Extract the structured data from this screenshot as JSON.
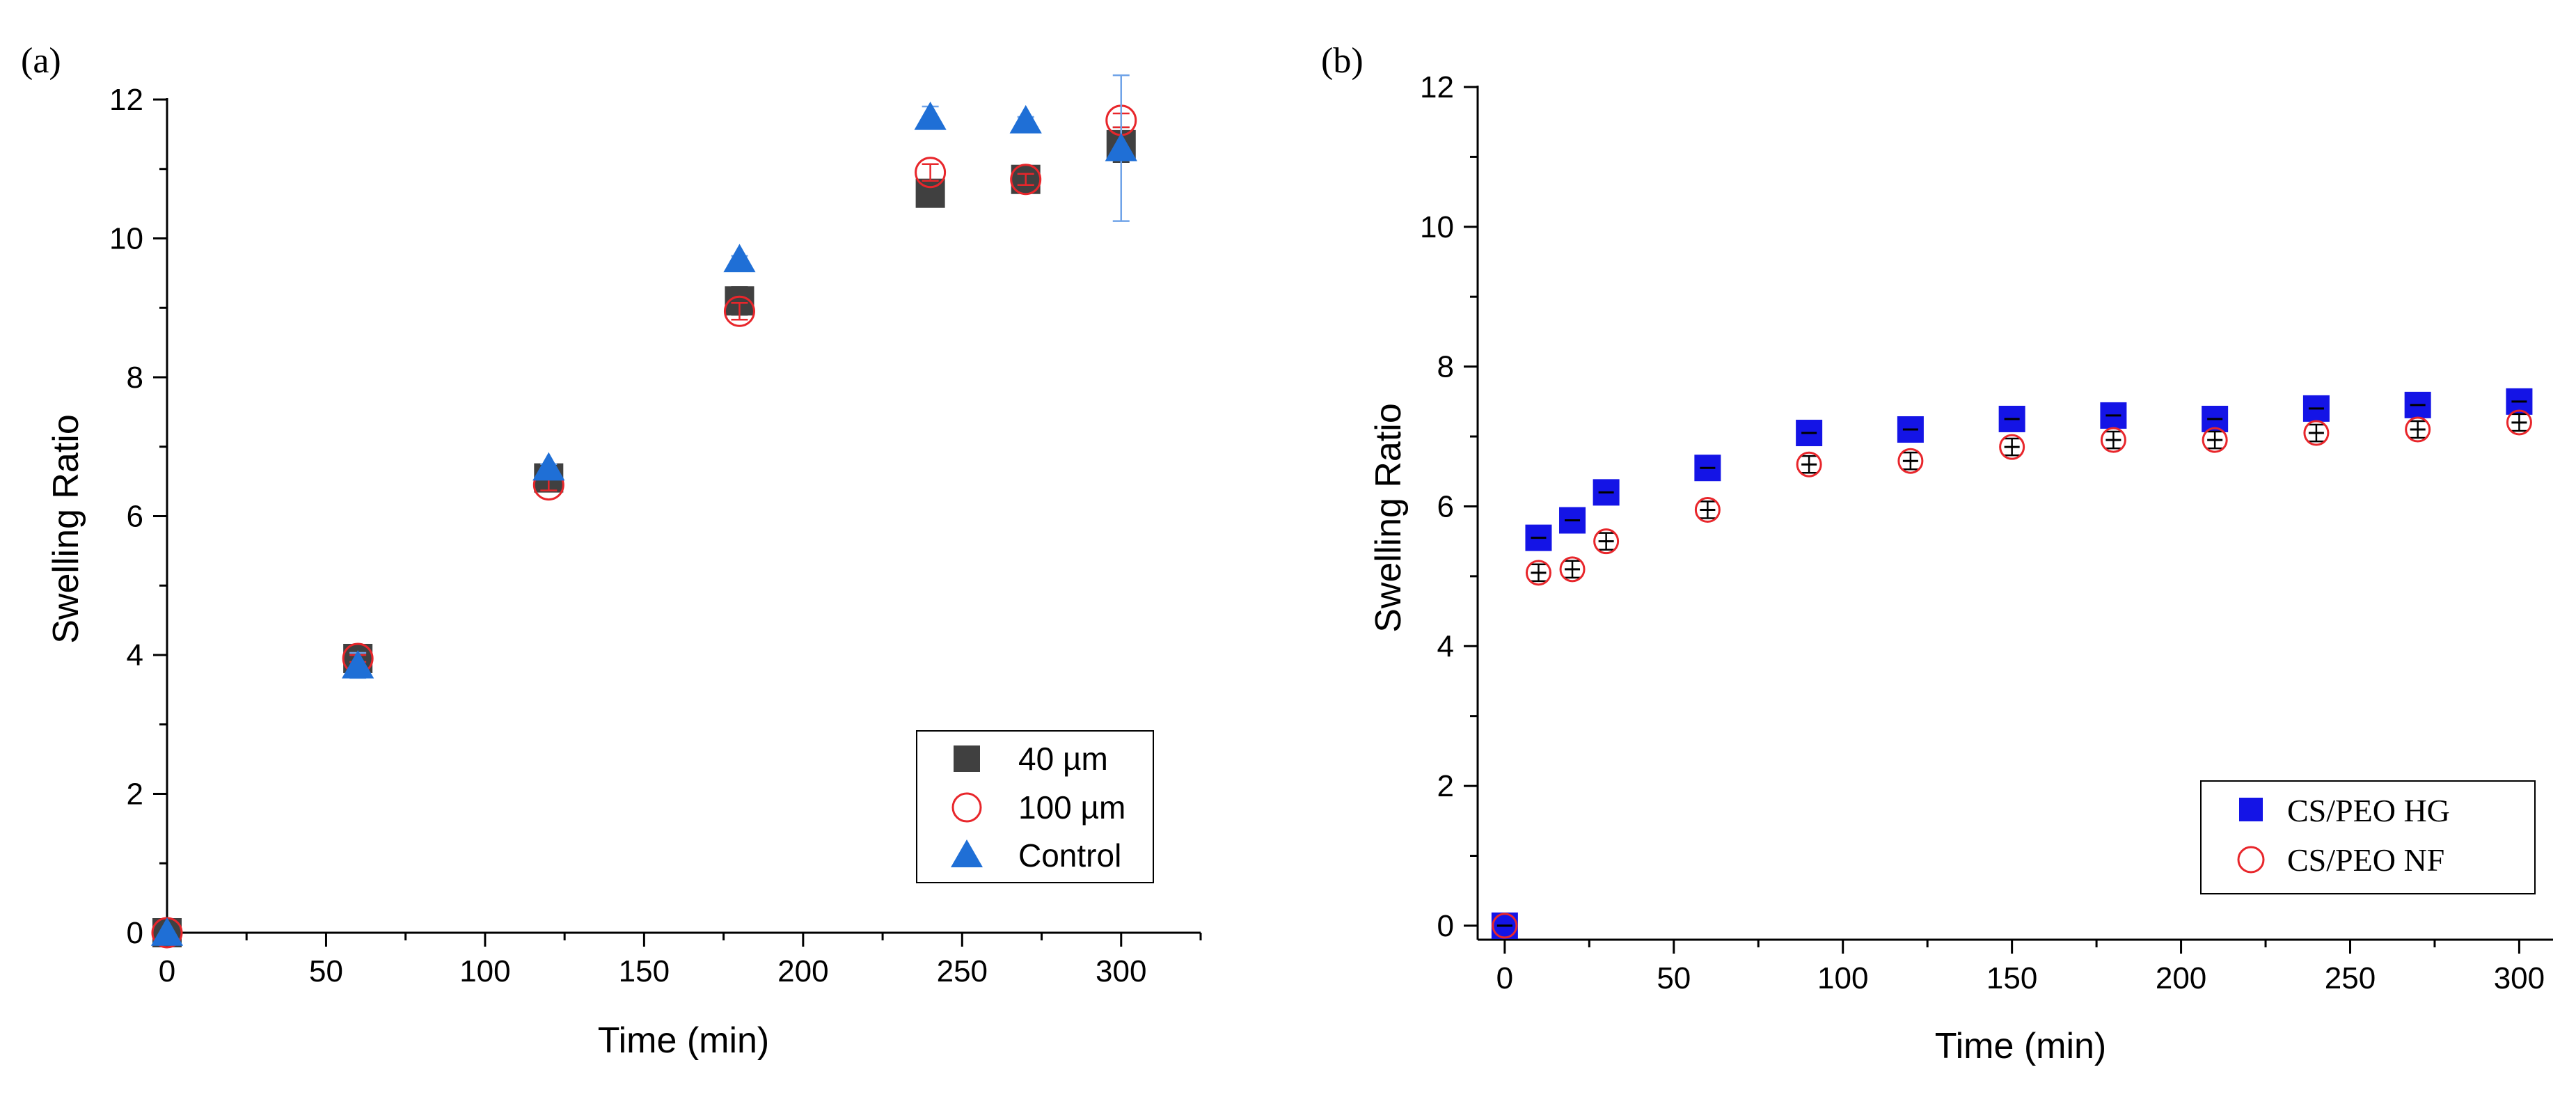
{
  "chart_data": [
    {
      "type": "scatter",
      "panel_label": "(a)",
      "title": "",
      "xlabel": "Time (min)",
      "ylabel": "Swelling Ratio",
      "xlim": [
        0,
        325
      ],
      "ylim": [
        0,
        12
      ],
      "xticks": [
        0,
        50,
        100,
        150,
        200,
        250,
        300
      ],
      "yticks": [
        0,
        2,
        4,
        6,
        8,
        10,
        12
      ],
      "grid": false,
      "legend_position": "bottom-right",
      "series": [
        {
          "name": "40 µm",
          "marker": "filled-square",
          "color": "#404040",
          "x": [
            0,
            60,
            120,
            180,
            240,
            270,
            300
          ],
          "y": [
            0,
            3.95,
            6.55,
            9.1,
            10.65,
            10.85,
            11.35
          ],
          "error": [
            0,
            0.05,
            0.05,
            0.2,
            0.05,
            0.1,
            0.25
          ]
        },
        {
          "name": "100 µm",
          "marker": "open-circle",
          "color": "#e8262b",
          "x": [
            0,
            60,
            120,
            180,
            240,
            270,
            300
          ],
          "y": [
            0,
            3.95,
            6.45,
            8.95,
            10.95,
            10.85,
            11.7
          ],
          "error": [
            0,
            0.05,
            0.08,
            0.12,
            0.12,
            0.08,
            0.1
          ]
        },
        {
          "name": "Control",
          "marker": "filled-triangle",
          "color": "#1f6fd6",
          "x": [
            0,
            60,
            120,
            180,
            240,
            270,
            300
          ],
          "y": [
            0,
            3.85,
            6.7,
            9.7,
            11.75,
            11.7,
            11.3
          ],
          "error": [
            0,
            0.18,
            0.05,
            0.05,
            0.15,
            0.05,
            1.05
          ]
        }
      ]
    },
    {
      "type": "scatter",
      "panel_label": "(b)",
      "title": "",
      "xlabel": "Time (min)",
      "ylabel": "Swelling Ratio",
      "xlim": [
        -8,
        310
      ],
      "ylim": [
        -0.2,
        12
      ],
      "xticks": [
        0,
        50,
        100,
        150,
        200,
        250,
        300
      ],
      "yticks": [
        0,
        2,
        4,
        6,
        8,
        10,
        12
      ],
      "grid": false,
      "legend_position": "bottom-right",
      "series": [
        {
          "name": "CS/PEO HG",
          "marker": "filled-square",
          "color": "#1414e6",
          "x": [
            0,
            10,
            20,
            30,
            60,
            90,
            120,
            150,
            180,
            210,
            240,
            270,
            300
          ],
          "y": [
            0,
            5.55,
            5.8,
            6.2,
            6.55,
            7.05,
            7.1,
            7.25,
            7.3,
            7.25,
            7.4,
            7.45,
            7.5
          ],
          "error": [
            0,
            0.12,
            0.12,
            0.12,
            0.12,
            0.12,
            0.12,
            0.12,
            0.12,
            0.12,
            0.12,
            0.12,
            0.12
          ]
        },
        {
          "name": "CS/PEO NF",
          "marker": "open-circle",
          "color": "#e8262b",
          "x": [
            0,
            10,
            20,
            30,
            60,
            90,
            120,
            150,
            180,
            210,
            240,
            270,
            300
          ],
          "y": [
            0,
            5.05,
            5.1,
            5.5,
            5.95,
            6.6,
            6.65,
            6.85,
            6.95,
            6.95,
            7.05,
            7.1,
            7.2
          ],
          "error": [
            0,
            0.12,
            0.12,
            0.12,
            0.12,
            0.12,
            0.12,
            0.12,
            0.12,
            0.12,
            0.12,
            0.12,
            0.12
          ]
        }
      ]
    }
  ]
}
